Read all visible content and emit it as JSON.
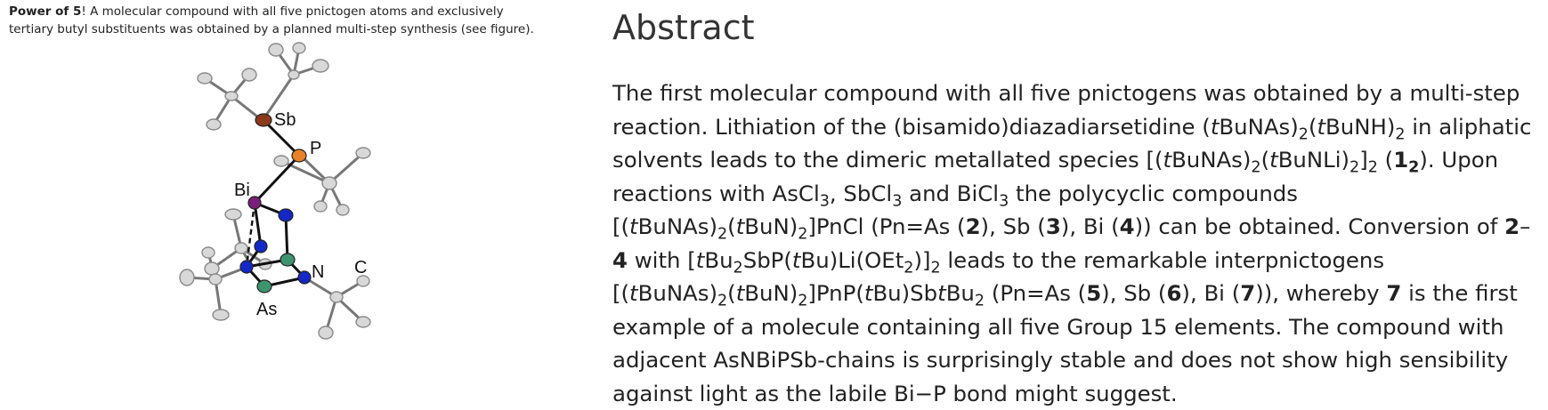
{
  "graphical_abstract": {
    "caption_bold": "Power of 5",
    "caption_text": "! A molecular compound with all five pnictogen atoms and exclusively tertiary butyl substituents was obtained by a planned multi-step synthesis (see figure).",
    "figure_labels": {
      "sb": "Sb",
      "p": "P",
      "bi": "Bi",
      "n": "N",
      "c": "C",
      "as": "As"
    },
    "atom_colors": {
      "sb": "#8B3A1A",
      "p": "#E8822A",
      "bi": "#7A1F7A",
      "n": "#1428C8",
      "as": "#3F9470",
      "c": "#C8C8C8"
    }
  },
  "abstract": {
    "heading": "Abstract",
    "t01": "The first molecular compound with all five pnictogens was obtained by a multi-step reaction. Lithiation of the (bisamido)diazadiarsetidine (",
    "t02": "t",
    "t03": "BuNAs)",
    "t04": "2",
    "t05": "(",
    "t06": "t",
    "t07": "BuNH)",
    "t08": "2",
    "t09": " in aliphatic solvents leads to the dimeric metallated species [(",
    "t10": "t",
    "t11": "BuNAs)",
    "t12": "2",
    "t13": "(",
    "t14": "t",
    "t15": "BuNLi)",
    "t16": "2",
    "t17": "]",
    "t18": "2",
    "t19": " (",
    "t20": "1",
    "t21": "2",
    "t22": "). Upon reactions with AsCl",
    "t23": "3",
    "t24": ", SbCl",
    "t25": "3",
    "t26": " and BiCl",
    "t27": "3",
    "t28": " the polycyclic compounds [(",
    "t29": "t",
    "t30": "BuNAs)",
    "t31": "2",
    "t32": "(",
    "t33": "t",
    "t34": "BuN)",
    "t35": "2",
    "t36": "]PnCl (Pn=As (",
    "t37": "2",
    "t38": "), Sb (",
    "t39": "3",
    "t40": "), Bi (",
    "t41": "4",
    "t42": ")) can be obtained. Conversion of ",
    "t43": "2",
    "t44": "–",
    "t45": "4",
    "t46": " with [",
    "t47": "t",
    "t48": "Bu",
    "t49": "2",
    "t50": "SbP(",
    "t51": "t",
    "t52": "Bu)Li(OEt",
    "t53": "2",
    "t54": ")]",
    "t55": "2",
    "t56": " leads to the remarkable interpnictogens [(",
    "t57": "t",
    "t58": "BuNAs)",
    "t59": "2",
    "t60": "(",
    "t61": "t",
    "t62": "BuN)",
    "t63": "2",
    "t64": "]PnP(",
    "t65": "t",
    "t66": "Bu)Sb",
    "t67": "t",
    "t68": "Bu",
    "t69": "2",
    "t70": " (Pn=As (",
    "t71": "5",
    "t72": "), Sb (",
    "t73": "6",
    "t74": "), Bi (",
    "t75": "7",
    "t76": ")), whereby ",
    "t77": "7",
    "t78": " is the first example of a molecule containing all five Group 15 elements. The compound with adjacent AsNBiPSb-chains is surprisingly stable and does not show high sensibility against light as the labile Bi−P bond might suggest."
  }
}
